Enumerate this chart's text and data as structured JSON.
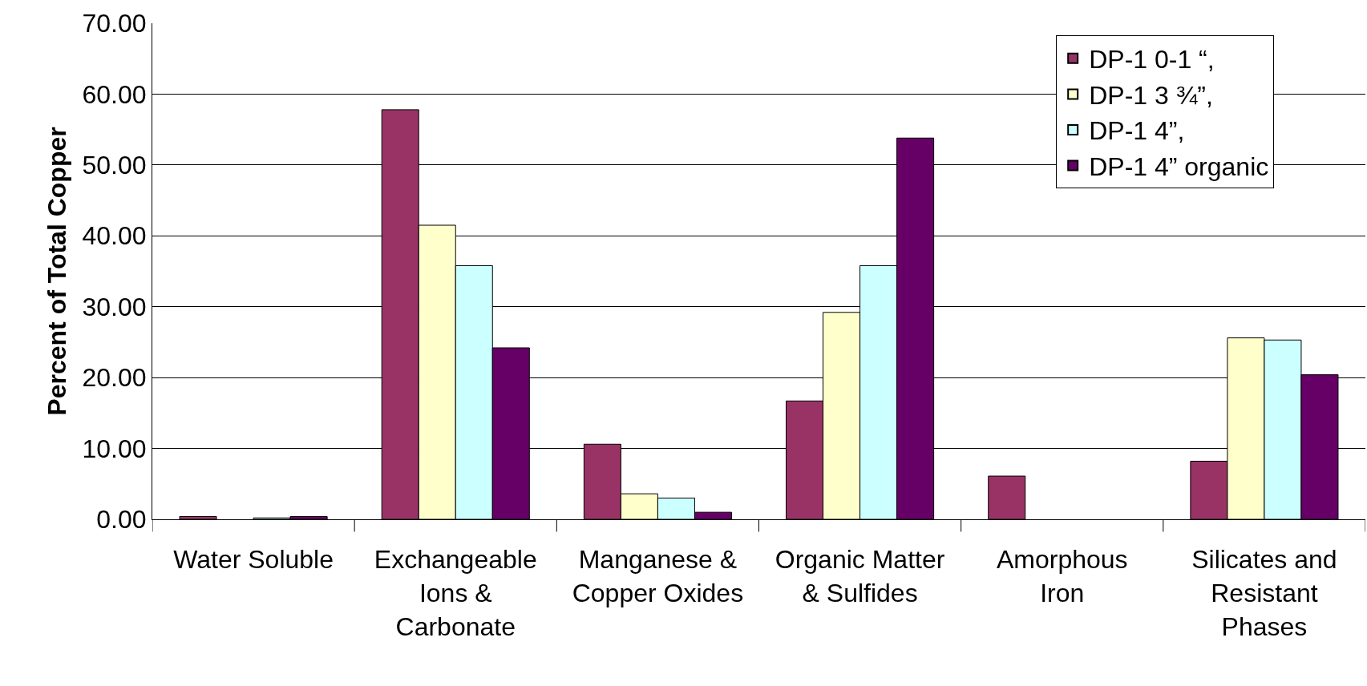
{
  "chart_data": {
    "type": "bar",
    "ylabel": "Percent of Total Copper",
    "categories": [
      "Water Soluble",
      "Exchangeable\nIons &\nCarbonate",
      "Manganese &\nCopper Oxides",
      "Organic Matter\n& Sulfides",
      "Amorphous\nIron",
      "Silicates and\nResistant\nPhases"
    ],
    "series": [
      {
        "name": "DP-1 0-1 “,",
        "color": "#993366",
        "values": [
          0.4,
          57.8,
          10.6,
          16.7,
          6.1,
          8.2
        ]
      },
      {
        "name": "DP-1 3 ¾”,",
        "color": "#ffffcc",
        "values": [
          0.0,
          41.5,
          3.6,
          29.2,
          0.0,
          25.6
        ]
      },
      {
        "name": "DP-1 4”,",
        "color": "#ccffff",
        "values": [
          0.2,
          35.8,
          3.0,
          35.8,
          0.0,
          25.3
        ]
      },
      {
        "name": "DP-1 4” organic",
        "color": "#660066",
        "values": [
          0.4,
          24.2,
          1.0,
          53.8,
          0.0,
          20.4
        ]
      }
    ],
    "ylim": [
      0,
      70
    ],
    "yticks": [
      {
        "value": 0,
        "label": "0.00"
      },
      {
        "value": 10,
        "label": "10.00"
      },
      {
        "value": 20,
        "label": "20.00"
      },
      {
        "value": 30,
        "label": "30.00"
      },
      {
        "value": 40,
        "label": "40.00"
      },
      {
        "value": 50,
        "label": "50.00"
      },
      {
        "value": 60,
        "label": "60.00"
      },
      {
        "value": 70,
        "label": "70.00"
      }
    ],
    "grid": "y",
    "legend": "top right"
  }
}
